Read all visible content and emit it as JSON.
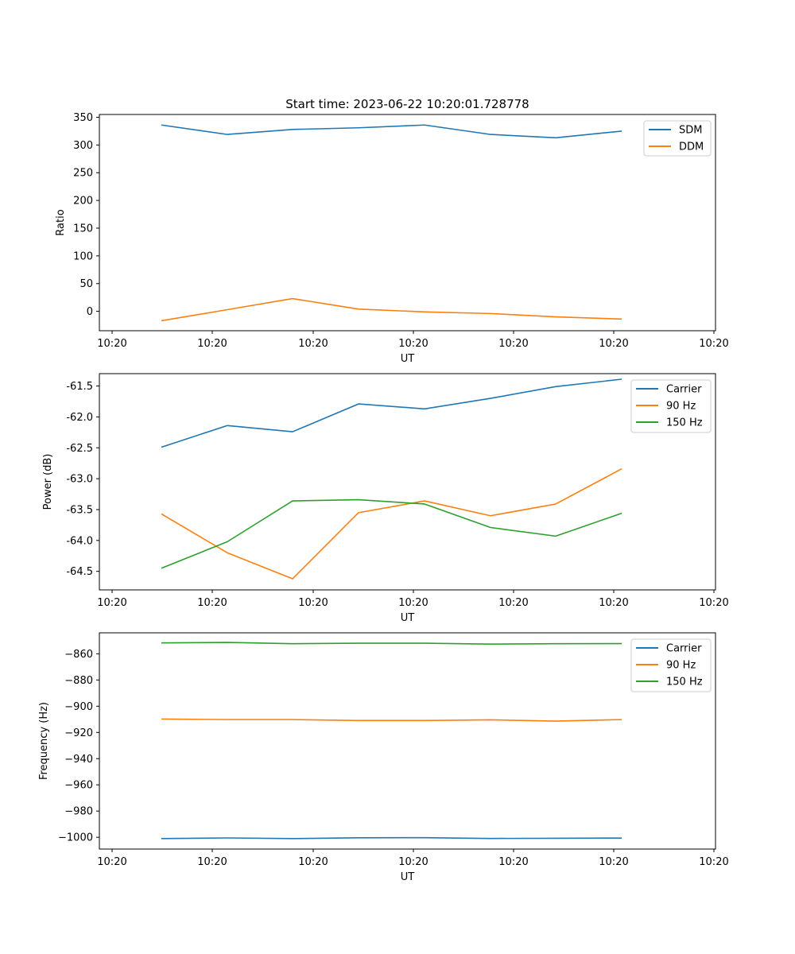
{
  "figure": {
    "title": "Start time: 2023-06-22 10:20:01.728778"
  },
  "chart_data": [
    {
      "type": "line",
      "title": "Start time: 2023-06-22 10:20:01.728778",
      "xlabel": "UT",
      "ylabel": "Ratio",
      "x": [
        "10:20:16",
        "10:20:18",
        "10:20:20",
        "10:20:22",
        "10:20:24",
        "10:20:26",
        "10:20:28",
        "10:20:30"
      ],
      "x_tick_labels": [
        "10:20",
        "10:20",
        "10:20",
        "10:20",
        "10:20",
        "10:20",
        "10:20",
        "10:21"
      ],
      "xlim": [
        0,
        25
      ],
      "ylim": [
        -35,
        355
      ],
      "y_ticks": [
        0,
        50,
        100,
        150,
        200,
        250,
        300,
        350
      ],
      "y_tick_labels": [
        "0",
        "50",
        "100",
        "150",
        "200",
        "250",
        "300",
        "350"
      ],
      "legend_position": "top-right",
      "grid": false,
      "series": [
        {
          "name": "SDM",
          "color": "#1f77b4",
          "values": [
            336,
            319,
            328,
            331,
            336,
            319,
            313,
            325
          ]
        },
        {
          "name": "DDM",
          "color": "#ff7f0e",
          "values": [
            -17,
            3,
            23,
            4,
            -1,
            -4,
            -10,
            -14
          ]
        }
      ]
    },
    {
      "type": "line",
      "title": "",
      "xlabel": "UT",
      "ylabel": "Power (dB)",
      "x": [
        "10:20:16",
        "10:20:18",
        "10:20:20",
        "10:20:22",
        "10:20:24",
        "10:20:26",
        "10:20:28",
        "10:20:30"
      ],
      "x_tick_labels": [
        "10:20",
        "10:20",
        "10:20",
        "10:20",
        "10:20",
        "10:20",
        "10:20",
        "10:21"
      ],
      "xlim": [
        0,
        25
      ],
      "ylim": [
        -64.8,
        -61.3
      ],
      "y_ticks": [
        -64.5,
        -64.0,
        -63.5,
        -63.0,
        -62.5,
        -62.0,
        -61.5
      ],
      "y_tick_labels": [
        "-64.5",
        "-64.0",
        "-63.5",
        "-63.0",
        "-62.5",
        "-62.0",
        "-61.5"
      ],
      "legend_position": "top-right",
      "grid": false,
      "series": [
        {
          "name": "Carrier",
          "color": "#1f77b4",
          "values": [
            -62.49,
            -62.14,
            -62.24,
            -61.79,
            -61.87,
            -61.7,
            -61.51,
            -61.39
          ]
        },
        {
          "name": "90 Hz",
          "color": "#ff7f0e",
          "values": [
            -63.57,
            -64.2,
            -64.62,
            -63.55,
            -63.36,
            -63.6,
            -63.41,
            -62.84
          ]
        },
        {
          "name": "150 Hz",
          "color": "#2ca02c",
          "values": [
            -64.45,
            -64.02,
            -63.36,
            -63.34,
            -63.41,
            -63.79,
            -63.93,
            -63.56
          ]
        }
      ]
    },
    {
      "type": "line",
      "title": "",
      "xlabel": "UT",
      "ylabel": "Frequency (Hz)",
      "x": [
        "10:20:16",
        "10:20:18",
        "10:20:20",
        "10:20:22",
        "10:20:24",
        "10:20:26",
        "10:20:28",
        "10:20:30"
      ],
      "x_tick_labels": [
        "10:20",
        "10:20",
        "10:20",
        "10:20",
        "10:20",
        "10:20",
        "10:20",
        "10:21"
      ],
      "xlim": [
        0,
        25
      ],
      "ylim": [
        -1009,
        -844
      ],
      "y_ticks": [
        -1000,
        -980,
        -960,
        -940,
        -920,
        -900,
        -880,
        -860
      ],
      "y_tick_labels": [
        "−1000",
        "−980",
        "−960",
        "−940",
        "−920",
        "−900",
        "−880",
        "−860"
      ],
      "legend_position": "top-right",
      "grid": false,
      "series": [
        {
          "name": "Carrier",
          "color": "#1f77b4",
          "values": [
            -1001,
            -1000.5,
            -1001,
            -1000.4,
            -1000.3,
            -1000.9,
            -1000.8,
            -1000.6
          ]
        },
        {
          "name": "90 Hz",
          "color": "#ff7f0e",
          "values": [
            -909.8,
            -910.2,
            -910.2,
            -910.9,
            -910.9,
            -910.4,
            -911.4,
            -910.2
          ]
        },
        {
          "name": "150 Hz",
          "color": "#2ca02c",
          "values": [
            -851.7,
            -851.3,
            -852.3,
            -851.9,
            -851.9,
            -852.6,
            -852.3,
            -852.2
          ]
        }
      ]
    }
  ]
}
